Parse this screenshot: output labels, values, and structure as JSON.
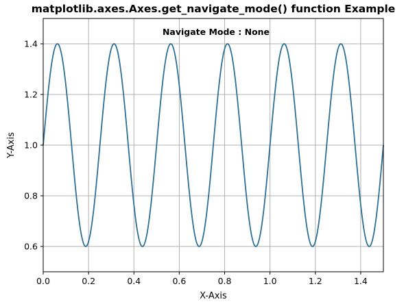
{
  "chart_data": {
    "type": "line",
    "title": "matplotlib.axes.Axes.get_navigate_mode() function Example",
    "annotation": "Navigate Mode : None",
    "xlabel": "X-Axis",
    "ylabel": "Y-Axis",
    "xlim": [
      0.0,
      1.5
    ],
    "ylim": [
      0.5,
      1.5
    ],
    "xticks": [
      "0.0",
      "0.2",
      "0.4",
      "0.6",
      "0.8",
      "1.0",
      "1.2",
      "1.4"
    ],
    "yticks": [
      "0.6",
      "0.8",
      "1.0",
      "1.2",
      "1.4"
    ],
    "grid": true,
    "series": [
      {
        "function": "y = 1 + 0.4 * sin(8*pi*x)",
        "x_start": 0.0,
        "x_end": 1.5,
        "color": "#2f6f96"
      }
    ]
  }
}
